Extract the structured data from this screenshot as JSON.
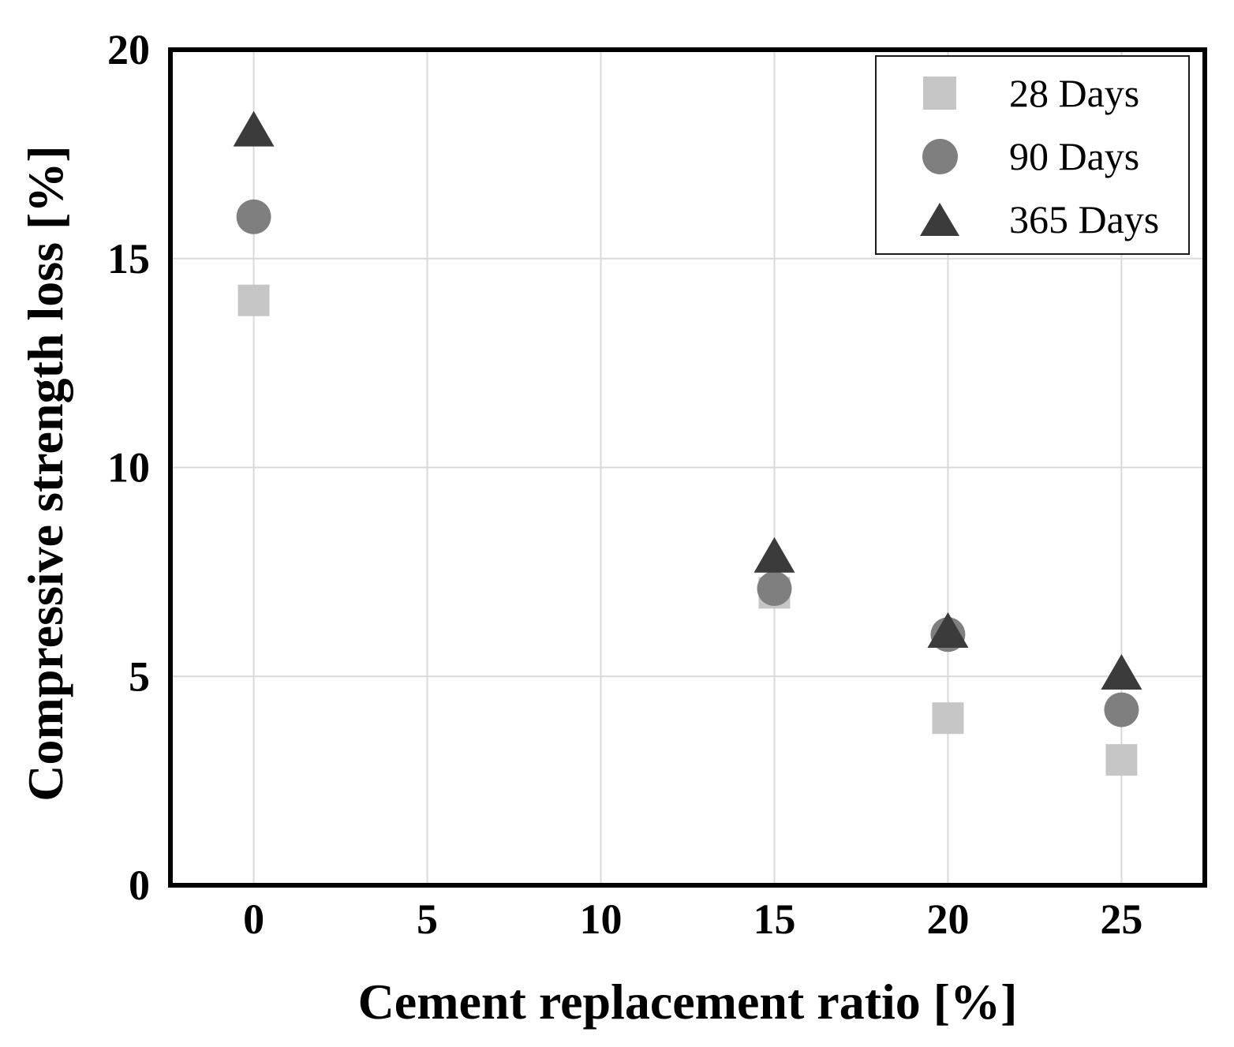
{
  "figure": {
    "background": "#ffffff"
  },
  "chart_data": {
    "type": "scatter",
    "title": "",
    "xlabel": "Cement replacement ratio [%]",
    "ylabel": "Compressive strength loss [%]",
    "xlim": [
      -2.4,
      27.4
    ],
    "ylim": [
      0,
      20
    ],
    "x_ticks": [
      0,
      5,
      10,
      15,
      20,
      25
    ],
    "y_ticks": [
      0,
      5,
      10,
      15,
      20
    ],
    "grid": true,
    "legend_position": "upper right",
    "x": [
      0,
      15,
      20,
      25
    ],
    "series": [
      {
        "name": "28 Days",
        "marker": "square",
        "color": "#c6c6c6",
        "values": [
          14.0,
          7.0,
          4.0,
          3.0
        ]
      },
      {
        "name": "90 Days",
        "marker": "circle",
        "color": "#7f7f7f",
        "values": [
          16.0,
          7.1,
          6.0,
          4.2
        ]
      },
      {
        "name": "365 Days",
        "marker": "triangle",
        "color": "#3b3b3b",
        "values": [
          18.1,
          7.9,
          6.1,
          5.1
        ]
      }
    ],
    "colors": {
      "gridline": "#d9d9d9",
      "frame": "#000000",
      "text": "#000000"
    }
  }
}
